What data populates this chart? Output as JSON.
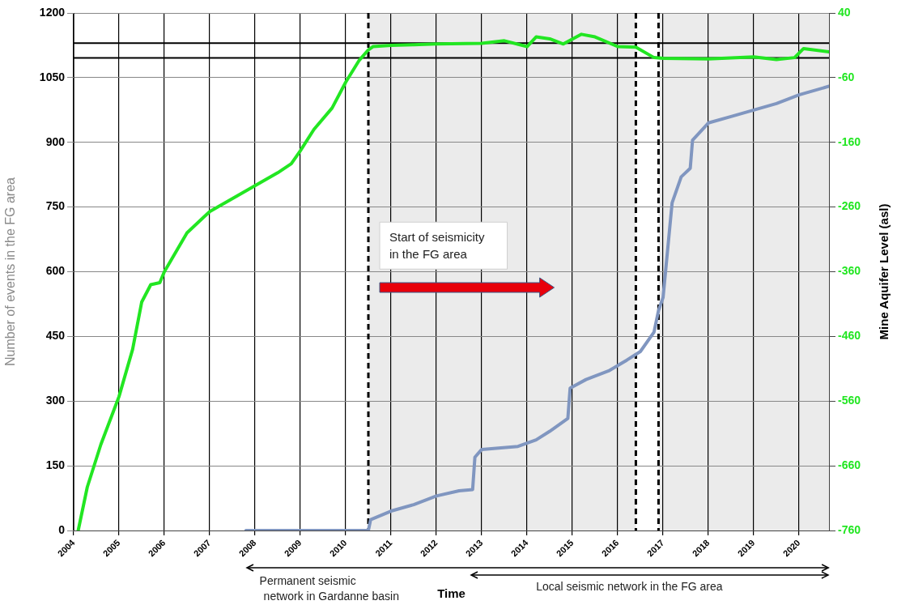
{
  "chart_data": {
    "type": "line",
    "xlabel": "Time",
    "ylabel": "Number of events in the FG area",
    "y2label": "Mine Aquifer Level (asl)",
    "xlim": [
      2004,
      2020.66
    ],
    "xticks": [
      2004,
      2005,
      2006,
      2007,
      2008,
      2009,
      2010,
      2011,
      2012,
      2013,
      2014,
      2015,
      2016,
      2017,
      2018,
      2019,
      2020
    ],
    "ylim": [
      0,
      1200
    ],
    "yticks": [
      0,
      150,
      300,
      450,
      600,
      750,
      900,
      1050,
      1200
    ],
    "y2lim": [
      -760,
      40
    ],
    "y2ticks": [
      -760,
      -660,
      -560,
      -460,
      -360,
      -260,
      -160,
      -60,
      40
    ],
    "grid": true,
    "legend": false,
    "marker": "none",
    "line_style": "solid",
    "series": [
      {
        "color": "#22e622",
        "axis": "y2",
        "x": [
          2004.1,
          2004.3,
          2004.6,
          2005.0,
          2005.3,
          2005.5,
          2005.7,
          2005.9,
          2006.0,
          2006.5,
          2007.0,
          2007.5,
          2008.0,
          2008.5,
          2008.8,
          2009.0,
          2009.3,
          2009.7,
          2010.0,
          2010.3,
          2010.5,
          2010.6,
          2011.0,
          2011.5,
          2012.0,
          2013.0,
          2013.5,
          2014.0,
          2014.2,
          2014.5,
          2014.8,
          2015.2,
          2015.5,
          2016.0,
          2016.4,
          2016.8,
          2017.0,
          2018.0,
          2019.0,
          2019.5,
          2019.9,
          2020.1,
          2020.66
        ],
        "values": [
          -760,
          -693,
          -627,
          -553,
          -480,
          -407,
          -380,
          -377,
          -360,
          -300,
          -267,
          -247,
          -227,
          -207,
          -193,
          -173,
          -140,
          -107,
          -67,
          -33,
          -17,
          -12,
          -10,
          -9,
          -8,
          -7,
          -3,
          -12,
          3,
          0,
          -8,
          7,
          3,
          -12,
          -13,
          -29,
          -30,
          -31,
          -28,
          -32,
          -29,
          -15,
          -20
        ]
      },
      {
        "color": "#8096c0",
        "axis": "y",
        "x": [
          2007.8,
          2010.5,
          2010.55,
          2011.0,
          2011.5,
          2012.0,
          2012.5,
          2012.8,
          2012.85,
          2013.0,
          2013.8,
          2014.2,
          2014.5,
          2014.9,
          2014.95,
          2015.3,
          2015.8,
          2016.2,
          2016.5,
          2016.8,
          2016.9,
          2017.0,
          2017.1,
          2017.2,
          2017.4,
          2017.6,
          2017.65,
          2018.0,
          2018.5,
          2019.0,
          2019.5,
          2020.0,
          2020.66
        ],
        "values": [
          0,
          0,
          25,
          45,
          60,
          80,
          92,
          95,
          170,
          188,
          195,
          210,
          230,
          260,
          330,
          350,
          370,
          395,
          415,
          460,
          510,
          540,
          650,
          760,
          820,
          840,
          905,
          945,
          960,
          975,
          990,
          1010,
          1030
        ]
      }
    ],
    "bands": [
      {
        "axis": "x",
        "from": 2010.5,
        "to": 2016.4,
        "color": "#ebebeb"
      },
      {
        "axis": "x",
        "from": 2016.9,
        "to": 2020.66,
        "color": "#ebebeb"
      }
    ],
    "ref_lines": [
      {
        "axis": "x",
        "value": 2010.5,
        "line_style": "dashed",
        "color": "#000000"
      },
      {
        "axis": "x",
        "value": 2016.4,
        "line_style": "dashed",
        "color": "#000000"
      },
      {
        "axis": "x",
        "value": 2016.9,
        "line_style": "dashed",
        "color": "#000000"
      },
      {
        "axis": "y",
        "value": 1130,
        "line_style": "solid",
        "color": "#000000"
      },
      {
        "axis": "y",
        "value": 1096,
        "line_style": "solid",
        "color": "#000000"
      }
    ],
    "annotations": [
      "Start of seismicity in the FG area",
      "Permanent seismic network in Gardanne basin",
      "Local seismic network in the FG area"
    ]
  }
}
